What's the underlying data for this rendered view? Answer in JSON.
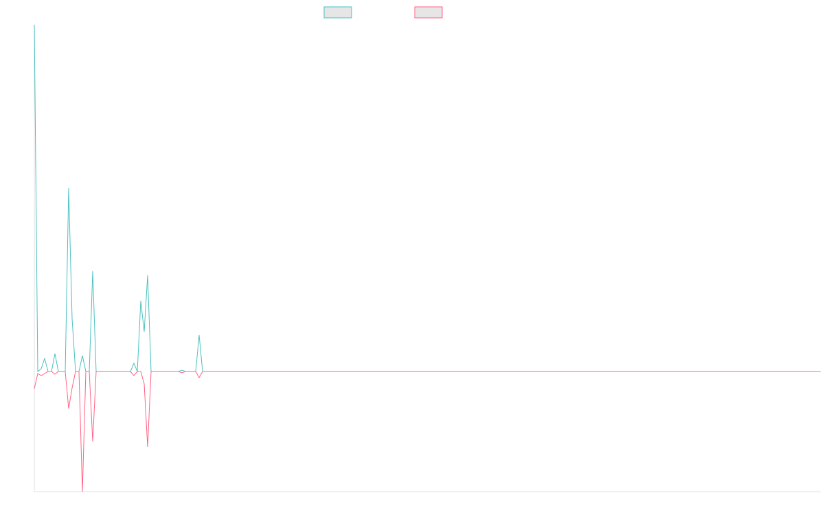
{
  "chart_data": {
    "type": "line",
    "categories": [
      null,
      null,
      null,
      null,
      null,
      null,
      null,
      null,
      null,
      null,
      null,
      null,
      null,
      null,
      null,
      null,
      null,
      null,
      null,
      null,
      null,
      null,
      null,
      null,
      null,
      null,
      null,
      null,
      null,
      null,
      null,
      null,
      null,
      null,
      null,
      null,
      null,
      null,
      null,
      null,
      null,
      null,
      null,
      null,
      null,
      null,
      null,
      null,
      null,
      null,
      null,
      null,
      null,
      null,
      null,
      null,
      null,
      null,
      null,
      null,
      null,
      null,
      null,
      null,
      null,
      null,
      null,
      null,
      null,
      null,
      null,
      null,
      null,
      null,
      null,
      null,
      null,
      null,
      null,
      null,
      null,
      null,
      null,
      null,
      null,
      null,
      null,
      null,
      null,
      null,
      null,
      null,
      null,
      null,
      null,
      null,
      null,
      null,
      null,
      null,
      null,
      null,
      null,
      null,
      null,
      null,
      null,
      null,
      null,
      null,
      null,
      null,
      null,
      null,
      null,
      null,
      null,
      null,
      null,
      null,
      null,
      null,
      null,
      null,
      null,
      null,
      null,
      null,
      null,
      null,
      null,
      null,
      null,
      null,
      null,
      null,
      null,
      null,
      null,
      null,
      null,
      null,
      null,
      null,
      null,
      null,
      null,
      null,
      null,
      null,
      null,
      null,
      null,
      null,
      null,
      null,
      null,
      null,
      null,
      null,
      null,
      null,
      null,
      null,
      null,
      null,
      null,
      null,
      null,
      null,
      null,
      null,
      null,
      null,
      null,
      null,
      null,
      null,
      null,
      null,
      null,
      null,
      null,
      null,
      null,
      null,
      null,
      null,
      null,
      null,
      null,
      null,
      null,
      null,
      null,
      null,
      null,
      null,
      null,
      null,
      null,
      null,
      null,
      null,
      null,
      null,
      null,
      null,
      null,
      null,
      null,
      null,
      null,
      null,
      null,
      null,
      null,
      null,
      null,
      null,
      null,
      null,
      null,
      null,
      null,
      null,
      null,
      null,
      null,
      null
    ],
    "series": [
      {
        "color": "#4bc0c0",
        "values": [
          505,
          0,
          4,
          19,
          0,
          0,
          26,
          0,
          0,
          0,
          267,
          77,
          0,
          0,
          23,
          0,
          0,
          146,
          0,
          0,
          0,
          0,
          0,
          0,
          0,
          0,
          0,
          0,
          0,
          12,
          0,
          103,
          58,
          140,
          0,
          0,
          0,
          0,
          0,
          0,
          0,
          0,
          0,
          2,
          0,
          0,
          0,
          0,
          53,
          0,
          0,
          0,
          0,
          0,
          0,
          0,
          0,
          0,
          0,
          0,
          0,
          0,
          0,
          0,
          0,
          0,
          0,
          0,
          0,
          0,
          0,
          0,
          0,
          0,
          0,
          0,
          0,
          0,
          0,
          0,
          0,
          0,
          0,
          0,
          0,
          0,
          0,
          0,
          0,
          0,
          0,
          0,
          0,
          0,
          0,
          0,
          0,
          0,
          0,
          0,
          0,
          0,
          0,
          0,
          0,
          0,
          0,
          0,
          0,
          0,
          0,
          0,
          0,
          0,
          0,
          0,
          0,
          0,
          0,
          0,
          0,
          0,
          0,
          0,
          0,
          0,
          0,
          0,
          0,
          0,
          0,
          0,
          0,
          0,
          0,
          0,
          0,
          0,
          0,
          0,
          0,
          0,
          0,
          0,
          0,
          0,
          0,
          0,
          0,
          0,
          0,
          0,
          0,
          0,
          0,
          0,
          0,
          0,
          0,
          0,
          0,
          0,
          0,
          0,
          0,
          0,
          0,
          0,
          0,
          0,
          0,
          0,
          0,
          0,
          0,
          0,
          0,
          0,
          0,
          0,
          0,
          0,
          0,
          0,
          0,
          0,
          0,
          0,
          0,
          0,
          0,
          0,
          0,
          0,
          0,
          0,
          0,
          0,
          0,
          0,
          0,
          0,
          0,
          0,
          0,
          0,
          0,
          0,
          0,
          0,
          0,
          0,
          0,
          0,
          0,
          0,
          0,
          0,
          0,
          0,
          0,
          0,
          0,
          0,
          0,
          0,
          0,
          0,
          0,
          0
        ]
      },
      {
        "color": "#ff6384",
        "values": [
          -25,
          -3,
          -6,
          -3,
          0,
          0,
          -4,
          0,
          0,
          0,
          -54,
          -24,
          0,
          0,
          -175,
          0,
          0,
          -102,
          0,
          0,
          0,
          0,
          0,
          0,
          0,
          0,
          0,
          0,
          0,
          -6,
          0,
          0,
          -18,
          -110,
          0,
          0,
          0,
          0,
          0,
          0,
          0,
          0,
          0,
          -2,
          0,
          0,
          0,
          0,
          -9,
          0,
          0,
          0,
          0,
          0,
          0,
          0,
          0,
          0,
          0,
          0,
          0,
          0,
          0,
          0,
          0,
          0,
          0,
          0,
          0,
          0,
          0,
          0,
          0,
          0,
          0,
          0,
          0,
          0,
          0,
          0,
          0,
          0,
          0,
          0,
          0,
          0,
          0,
          0,
          0,
          0,
          0,
          0,
          0,
          0,
          0,
          0,
          0,
          0,
          0,
          0,
          0,
          0,
          0,
          0,
          0,
          0,
          0,
          0,
          0,
          0,
          0,
          0,
          0,
          0,
          0,
          0,
          0,
          0,
          0,
          0,
          0,
          0,
          0,
          0,
          0,
          0,
          0,
          0,
          0,
          0,
          0,
          0,
          0,
          0,
          0,
          0,
          0,
          0,
          0,
          0,
          0,
          0,
          0,
          0,
          0,
          0,
          0,
          0,
          0,
          0,
          0,
          0,
          0,
          0,
          0,
          0,
          0,
          0,
          0,
          0,
          0,
          0,
          0,
          0,
          0,
          0,
          0,
          0,
          0,
          0,
          0,
          0,
          0,
          0,
          0,
          0,
          0,
          0,
          0,
          0,
          0,
          0,
          0,
          0,
          0,
          0,
          0,
          0,
          0,
          0,
          0,
          0,
          0,
          0,
          0,
          0,
          0,
          0,
          0,
          0,
          0,
          0,
          0,
          0,
          0,
          0,
          0,
          0,
          0,
          0,
          0,
          0,
          0,
          0,
          0,
          0,
          0,
          0,
          0,
          0,
          0,
          0,
          0,
          0,
          0,
          0,
          0,
          0,
          0,
          0
        ]
      }
    ],
    "ylim": [
      -175,
      505
    ]
  }
}
